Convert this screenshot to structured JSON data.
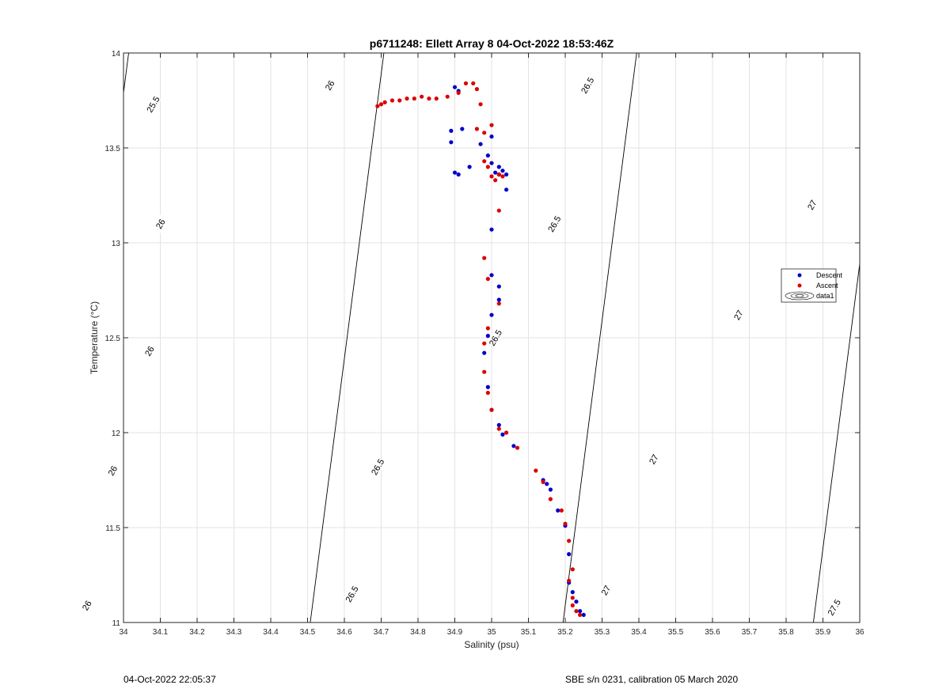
{
  "chart_data": {
    "type": "scatter",
    "title": "p6711248: Ellett Array 8 04-Oct-2022 18:53:46Z",
    "xlabel": "Salinity (psu)",
    "ylabel": "Temperature (°C)",
    "xlim": [
      34,
      36
    ],
    "ylim": [
      11,
      14
    ],
    "xticks": [
      "34",
      "34.1",
      "34.2",
      "34.3",
      "34.4",
      "34.5",
      "34.6",
      "34.7",
      "34.8",
      "34.9",
      "35",
      "35.1",
      "35.2",
      "35.3",
      "35.4",
      "35.5",
      "35.6",
      "35.7",
      "35.8",
      "35.9",
      "36"
    ],
    "yticks": [
      "11",
      "11.5",
      "12",
      "12.5",
      "13",
      "13.5",
      "14"
    ],
    "grid": true,
    "legend_position": "right",
    "legend": [
      "Descent",
      "Ascent",
      "data1"
    ],
    "series": [
      {
        "name": "Descent",
        "color": "#0000cc",
        "x": [
          34.9,
          34.91,
          34.89,
          34.89,
          34.92,
          34.9,
          34.91,
          34.94,
          34.97,
          35.0,
          34.99,
          35.0,
          35.01,
          35.02,
          35.02,
          35.03,
          35.04,
          35.04,
          35.0,
          35.0,
          35.02,
          35.02,
          35.0,
          34.99,
          34.98,
          34.99,
          35.0,
          35.02,
          35.03,
          35.06,
          35.14,
          35.15,
          35.16,
          35.18,
          35.2,
          35.21,
          35.21,
          35.22,
          35.23,
          35.24,
          35.25
        ],
        "y": [
          13.82,
          13.8,
          13.59,
          13.53,
          13.6,
          13.37,
          13.36,
          13.4,
          13.52,
          13.56,
          13.46,
          13.42,
          13.37,
          13.36,
          13.4,
          13.38,
          13.36,
          13.28,
          13.07,
          12.83,
          12.77,
          12.7,
          12.62,
          12.51,
          12.42,
          12.24,
          12.12,
          12.04,
          11.99,
          11.93,
          11.75,
          11.73,
          11.7,
          11.59,
          11.51,
          11.36,
          11.21,
          11.16,
          11.11,
          11.06,
          11.04
        ]
      },
      {
        "name": "Ascent",
        "color": "#dd0000",
        "x": [
          34.69,
          34.7,
          34.71,
          34.73,
          34.75,
          34.77,
          34.79,
          34.81,
          34.83,
          34.85,
          34.88,
          34.91,
          34.93,
          34.95,
          34.96,
          34.97,
          34.96,
          34.98,
          35.0,
          34.98,
          34.99,
          35.0,
          35.01,
          35.02,
          35.03,
          35.02,
          34.98,
          34.99,
          35.02,
          34.99,
          34.98,
          34.98,
          34.99,
          35.0,
          35.02,
          35.04,
          35.07,
          35.12,
          35.14,
          35.16,
          35.19,
          35.2,
          35.21,
          35.22,
          35.21,
          35.22,
          35.22,
          35.23,
          35.24
        ],
        "y": [
          13.72,
          13.73,
          13.74,
          13.75,
          13.75,
          13.76,
          13.76,
          13.77,
          13.76,
          13.76,
          13.77,
          13.79,
          13.84,
          13.84,
          13.81,
          13.73,
          13.6,
          13.58,
          13.62,
          13.43,
          13.4,
          13.35,
          13.33,
          13.36,
          13.35,
          13.17,
          12.92,
          12.81,
          12.68,
          12.55,
          12.47,
          12.32,
          12.21,
          12.12,
          12.02,
          12.0,
          11.92,
          11.8,
          11.74,
          11.65,
          11.59,
          11.52,
          11.43,
          11.28,
          11.22,
          11.13,
          11.09,
          11.06,
          11.04
        ]
      }
    ],
    "contours": [
      {
        "label": "25.5",
        "slope": 15.0,
        "intercept": -496.21
      },
      {
        "label": "26",
        "slope": 15.0,
        "intercept": -506.61
      },
      {
        "label": "26.5",
        "slope": 15.0,
        "intercept": -516.91
      },
      {
        "label": "27",
        "slope": 15.0,
        "intercept": -527.11
      },
      {
        "label": "27.5",
        "slope": 15.0,
        "intercept": -537.41
      }
    ],
    "contour_labels": [
      {
        "label": "25.5",
        "x": 34.08,
        "y": 13.73,
        "angle": -60
      },
      {
        "label": "26",
        "x": 34.56,
        "y": 13.83,
        "angle": -60
      },
      {
        "label": "26",
        "x": 34.1,
        "y": 13.1,
        "angle": -60
      },
      {
        "label": "26",
        "x": 34.07,
        "y": 12.43,
        "angle": -60
      },
      {
        "label": "26",
        "x": 33.97,
        "y": 11.8,
        "angle": -60
      },
      {
        "label": "26",
        "x": 33.9,
        "y": 11.09,
        "angle": -60
      },
      {
        "label": "26.5",
        "x": 35.26,
        "y": 13.83,
        "angle": -60
      },
      {
        "label": "26.5",
        "x": 35.17,
        "y": 13.1,
        "angle": -60
      },
      {
        "label": "26.5",
        "x": 35.01,
        "y": 12.5,
        "angle": -60
      },
      {
        "label": "26.5",
        "x": 34.69,
        "y": 11.82,
        "angle": -60
      },
      {
        "label": "26.5",
        "x": 34.62,
        "y": 11.15,
        "angle": -60
      },
      {
        "label": "27",
        "x": 35.87,
        "y": 13.2,
        "angle": -60
      },
      {
        "label": "27",
        "x": 35.67,
        "y": 12.62,
        "angle": -60
      },
      {
        "label": "27",
        "x": 35.44,
        "y": 11.86,
        "angle": -60
      },
      {
        "label": "27",
        "x": 35.31,
        "y": 11.17,
        "angle": -60
      },
      {
        "label": "27.5",
        "x": 35.93,
        "y": 11.08,
        "angle": -60
      }
    ]
  },
  "footer": {
    "left": "04-Oct-2022 22:05:37",
    "right": "SBE s/n 0231, calibration 05 March 2020"
  }
}
